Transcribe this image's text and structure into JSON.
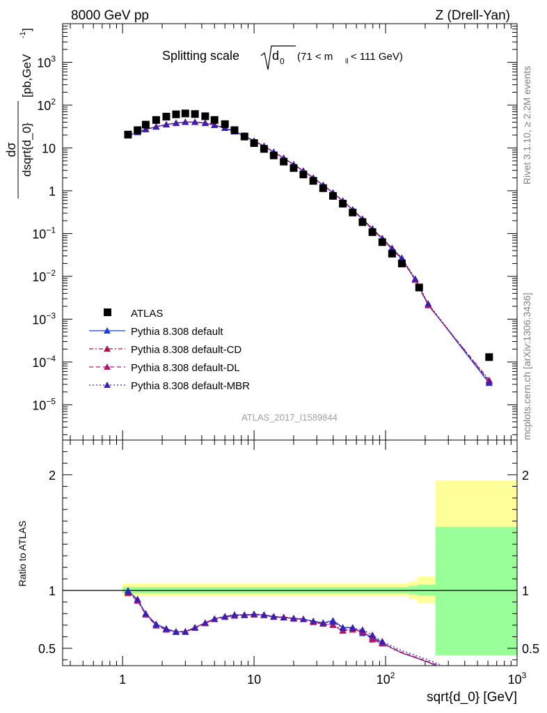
{
  "header": {
    "left": "8000 GeV pp",
    "right": "Z (Drell-Yan)"
  },
  "plot_title": {
    "main": "Splitting scale",
    "sqrt_symbol": "d",
    "sqrt_sub": "0",
    "range_open": "(71 < m",
    "range_sub": "ll",
    "range_close": "< 111 GeV)"
  },
  "side_labels": {
    "rivet": "Rivet 3.1.10, ≥ 2.2M events",
    "mcplots": "mcplots.cern.ch [arXiv:1306.3436]"
  },
  "watermark": "ATLAS_2017_I1589844",
  "axes": {
    "ylabel_top_num": "dσ",
    "ylabel_top_den": "dsqrt{d_0}",
    "ylabel_top_unit": "[pb,GeV",
    "ylabel_top_unit_sup": "-1",
    "ylabel_top_unit_close": "]",
    "ylabel_bottom": "Ratio to ATLAS",
    "xlabel": "sqrt{d_0} [GeV]"
  },
  "ticks": {
    "x": [
      {
        "v": 1,
        "label": "1"
      },
      {
        "v": 10,
        "label": "10"
      },
      {
        "v": 100,
        "label": "10",
        "sup": "2"
      },
      {
        "v": 1000,
        "label": "10",
        "sup": "3"
      }
    ],
    "y_top": [
      {
        "v": 1000.0,
        "label": "10",
        "sup": "3"
      },
      {
        "v": 100.0,
        "label": "10",
        "sup": "2"
      },
      {
        "v": 10,
        "label": "10"
      },
      {
        "v": 1,
        "label": "1"
      },
      {
        "v": 0.1,
        "label": "10",
        "sup": "−1"
      },
      {
        "v": 0.01,
        "label": "10",
        "sup": "−2"
      },
      {
        "v": 0.001,
        "label": "10",
        "sup": "−3"
      },
      {
        "v": 0.0001,
        "label": "10",
        "sup": "−4"
      },
      {
        "v": 1e-05,
        "label": "10",
        "sup": "−5"
      }
    ],
    "y_ratio": [
      {
        "v": 2,
        "label": "2"
      },
      {
        "v": 1,
        "label": "1"
      },
      {
        "v": 0.5,
        "label": "0.5"
      }
    ]
  },
  "legend": [
    {
      "label": "ATLAS",
      "key": "atlas"
    },
    {
      "label": "Pythia 8.308 default",
      "key": "default"
    },
    {
      "label": "Pythia 8.308 default-CD",
      "key": "cd"
    },
    {
      "label": "Pythia 8.308 default-DL",
      "key": "dl"
    },
    {
      "label": "Pythia 8.308 default-MBR",
      "key": "mbr"
    }
  ],
  "colors": {
    "atlas": "#000000",
    "default": "#1f3ad9",
    "cd": "#b0124a",
    "dl": "#b01470",
    "mbr": "#3a1fb0",
    "band_stat": "#99ff99",
    "band_total": "#ffff99"
  },
  "chart_data": {
    "type": "scatter",
    "log_x": true,
    "log_y_top": true,
    "xlim": [
      0.35,
      1000
    ],
    "ylim_top": [
      1.5e-06,
      8000
    ],
    "ylim_ratio": [
      0.35,
      2.3
    ],
    "x": [
      1.1,
      1.3,
      1.5,
      1.8,
      2.15,
      2.55,
      3.0,
      3.55,
      4.25,
      5.0,
      6.0,
      7.1,
      8.45,
      10.0,
      11.9,
      14.1,
      16.8,
      20.0,
      23.7,
      28.2,
      33.5,
      39.8,
      47.3,
      56.2,
      66.8,
      79.4,
      94.4,
      112.0,
      133.0,
      168.0,
      211.0,
      613.0
    ],
    "series": [
      {
        "name": "ATLAS",
        "key": "atlas",
        "values": [
          20.5,
          26,
          35,
          45,
          54,
          61,
          64,
          62,
          55,
          45,
          36,
          26,
          18.5,
          13,
          9.5,
          6.7,
          4.8,
          3.4,
          2.4,
          1.7,
          1.15,
          0.76,
          0.5,
          0.31,
          0.185,
          0.108,
          0.063,
          0.034,
          0.02,
          0.0055,
          0.00013
        ],
        "x_override": [
          1.1,
          1.3,
          1.5,
          1.8,
          2.15,
          2.55,
          3.0,
          3.55,
          4.25,
          5.0,
          6.0,
          7.1,
          8.45,
          10.0,
          11.9,
          14.1,
          16.8,
          20.0,
          23.7,
          28.2,
          33.5,
          39.8,
          47.3,
          56.2,
          66.8,
          79.4,
          94.4,
          112.0,
          133.0,
          180.0,
          613.0
        ]
      },
      {
        "name": "Pythia 8.308 default",
        "key": "default",
        "values": [
          19.5,
          23,
          27,
          31,
          35,
          38,
          40,
          40,
          38,
          34,
          29,
          24,
          19,
          14.5,
          11,
          8,
          5.8,
          4.1,
          2.9,
          2.0,
          1.35,
          0.9,
          0.58,
          0.36,
          0.22,
          0.13,
          0.077,
          0.045,
          0.026,
          0.0085,
          0.0022,
          3.2e-05
        ]
      },
      {
        "name": "Pythia 8.308 default-CD",
        "key": "cd",
        "values": [
          19.8,
          23.5,
          27.5,
          31.5,
          35.5,
          38.5,
          40.5,
          40.5,
          38.5,
          34.5,
          29.5,
          24.5,
          19.2,
          14.7,
          11.1,
          8.1,
          5.85,
          4.15,
          2.95,
          2.02,
          1.36,
          0.9,
          0.58,
          0.36,
          0.21,
          0.125,
          0.074,
          0.043,
          0.025,
          0.0082,
          0.0021,
          3.8e-05
        ]
      },
      {
        "name": "Pythia 8.308 default-DL",
        "key": "dl",
        "values": [
          19.7,
          23.3,
          27.3,
          31.3,
          35.3,
          38.3,
          40.3,
          40.3,
          38.3,
          34.3,
          29.3,
          24.3,
          19.1,
          14.6,
          11.05,
          8.05,
          5.82,
          4.12,
          2.92,
          2.01,
          1.35,
          0.9,
          0.58,
          0.36,
          0.215,
          0.127,
          0.075,
          0.044,
          0.0255,
          0.0083,
          0.00215,
          3.6e-05
        ]
      },
      {
        "name": "Pythia 8.308 default-MBR",
        "key": "mbr",
        "values": [
          19.6,
          23.2,
          27.1,
          31.1,
          35.1,
          38.1,
          40.1,
          40.1,
          38.1,
          34.1,
          29.1,
          24.1,
          19.0,
          14.55,
          11.02,
          8.02,
          5.8,
          4.1,
          2.9,
          2.0,
          1.35,
          0.9,
          0.585,
          0.365,
          0.22,
          0.13,
          0.078,
          0.046,
          0.027,
          0.0088,
          0.0023,
          3.4e-05
        ]
      }
    ],
    "ratio_x": [
      1.1,
      1.3,
      1.5,
      1.8,
      2.15,
      2.55,
      3.0,
      3.55,
      4.25,
      5.0,
      6.0,
      7.1,
      8.45,
      10.0,
      11.9,
      14.1,
      16.8,
      20.0,
      23.7,
      28.2,
      33.5,
      39.8,
      47.3,
      56.2,
      66.8,
      79.4,
      94.4,
      112.0,
      133.0,
      168.0,
      211.0,
      300.0
    ],
    "ratio_series": [
      {
        "key": "default",
        "values": [
          1.0,
          0.92,
          0.8,
          0.71,
          0.67,
          0.64,
          0.645,
          0.68,
          0.72,
          0.755,
          0.775,
          0.79,
          0.785,
          0.795,
          0.785,
          0.775,
          0.765,
          0.76,
          0.75,
          0.735,
          0.72,
          0.74,
          0.68,
          0.68,
          0.63,
          0.6,
          0.55,
          0.5,
          0.46,
          0.42,
          0.38,
          0.3
        ]
      },
      {
        "key": "cd",
        "values": [
          0.98,
          0.915,
          0.795,
          0.7,
          0.665,
          0.645,
          0.645,
          0.68,
          0.72,
          0.755,
          0.775,
          0.785,
          0.79,
          0.795,
          0.79,
          0.775,
          0.77,
          0.76,
          0.755,
          0.73,
          0.715,
          0.705,
          0.655,
          0.665,
          0.65,
          0.575,
          0.54,
          0.5,
          0.46,
          0.42,
          0.38,
          0.31
        ]
      },
      {
        "key": "dl",
        "values": [
          0.975,
          0.91,
          0.79,
          0.695,
          0.66,
          0.64,
          0.64,
          0.675,
          0.715,
          0.75,
          0.77,
          0.78,
          0.785,
          0.79,
          0.785,
          0.77,
          0.765,
          0.755,
          0.75,
          0.725,
          0.71,
          0.7,
          0.65,
          0.66,
          0.645,
          0.585,
          0.545,
          0.505,
          0.465,
          0.425,
          0.385,
          0.32
        ]
      },
      {
        "key": "mbr",
        "values": [
          0.99,
          0.925,
          0.8,
          0.705,
          0.67,
          0.645,
          0.645,
          0.68,
          0.72,
          0.755,
          0.775,
          0.79,
          0.79,
          0.795,
          0.79,
          0.775,
          0.765,
          0.76,
          0.75,
          0.735,
          0.72,
          0.73,
          0.675,
          0.675,
          0.66,
          0.615,
          0.56,
          0.52,
          0.48,
          0.44,
          0.4,
          0.33
        ]
      }
    ],
    "bands": {
      "edges": [
        1.0,
        150.0,
        175.0,
        240.0,
        1000.0
      ],
      "total_half": [
        0.05,
        0.075,
        0.11,
        0.16
      ],
      "stat_half": [
        0.025,
        0.035,
        0.045,
        0.56
      ],
      "total_up": [
        0.06,
        0.08,
        0.12,
        0.95
      ],
      "stat_up": [
        0.03,
        0.04,
        0.05,
        0.55
      ]
    },
    "ratio_reference": 1.0
  }
}
